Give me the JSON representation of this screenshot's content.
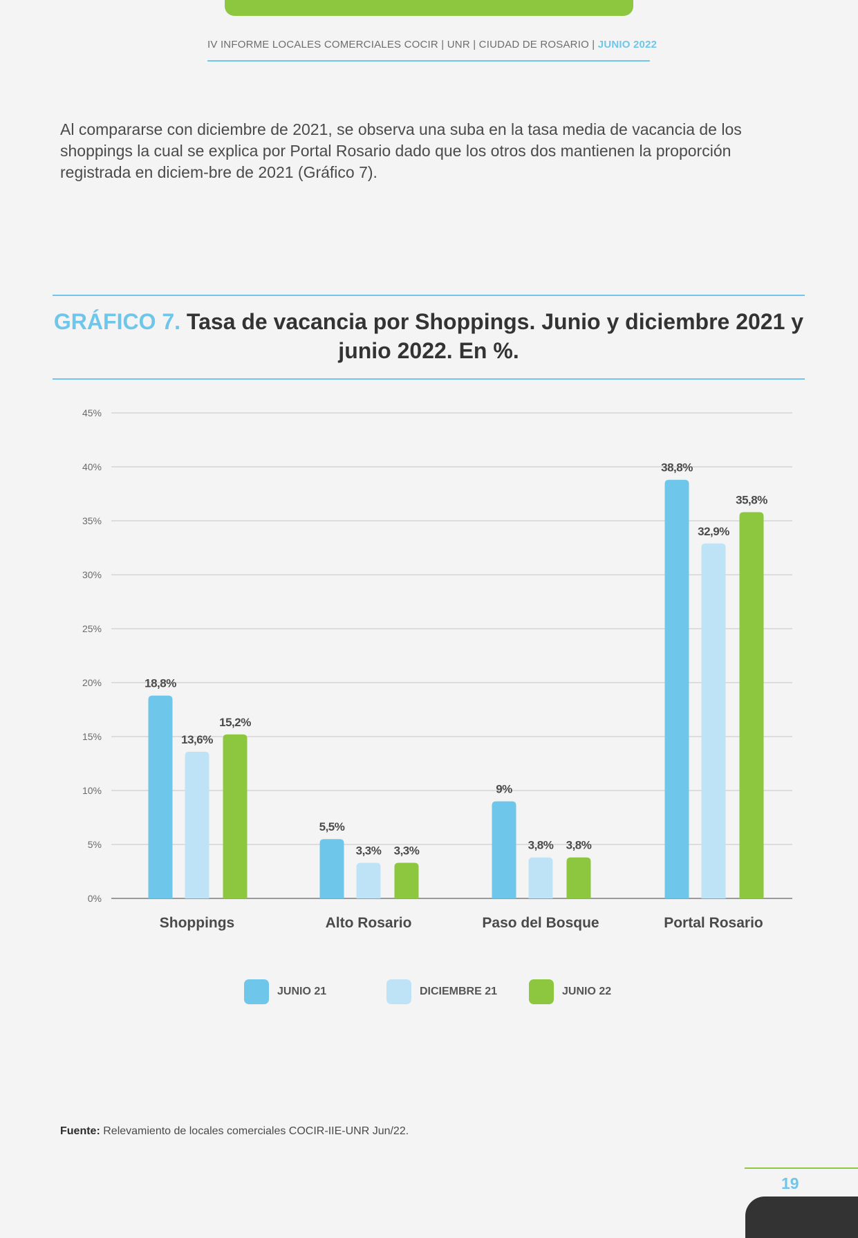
{
  "header": {
    "text": "IV INFORME LOCALES COMERCIALES COCIR | UNR | CIUDAD DE ROSARIO | ",
    "date": "JUNIO 2022"
  },
  "intro": "Al compararse con diciembre de 2021, se observa una suba en la tasa media de vacancia de los shoppings la cual se explica por Portal Rosario dado que los otros dos mantienen la proporción registrada en diciem-bre de 2021 (Gráfico 7).",
  "chart_title": {
    "number": "GRÁFICO 7.",
    "text": "Tasa de vacancia por Shoppings. Junio y diciembre 2021 y junio 2022. En %."
  },
  "chart_data": {
    "type": "bar",
    "title": "GRÁFICO 7. Tasa de vacancia por Shoppings. Junio y diciembre 2021 y junio 2022. En %.",
    "categories": [
      "Shoppings",
      "Alto Rosario",
      "Paso del Bosque",
      "Portal Rosario"
    ],
    "series": [
      {
        "name": "JUNIO 21",
        "color": "#6ec6ea",
        "values": [
          18.8,
          5.5,
          9,
          38.8
        ],
        "labels": [
          "18,8%",
          "5,5%",
          "9%",
          "38,8%"
        ]
      },
      {
        "name": "DICIEMBRE 21",
        "color": "#bfe3f6",
        "values": [
          13.6,
          3.3,
          3.8,
          32.9
        ],
        "labels": [
          "13,6%",
          "3,3%",
          "3,8%",
          "32,9%"
        ]
      },
      {
        "name": "JUNIO 22",
        "color": "#8dc63f",
        "values": [
          15.2,
          3.3,
          3.8,
          35.8
        ],
        "labels": [
          "15,2%",
          "3,3%",
          "3,8%",
          "35,8%"
        ]
      }
    ],
    "yticks": [
      0,
      5,
      10,
      15,
      20,
      25,
      30,
      35,
      40,
      45
    ],
    "ytick_labels": [
      "0%",
      "5%",
      "10%",
      "15%",
      "20%",
      "25%",
      "30%",
      "35%",
      "40%",
      "45%"
    ],
    "ylim": [
      0,
      45
    ],
    "grid": true,
    "legend_position": "bottom"
  },
  "source": {
    "label": "Fuente:",
    "text": "Relevamiento de locales comerciales COCIR-IIE-UNR Jun/22."
  },
  "page_number": "19"
}
